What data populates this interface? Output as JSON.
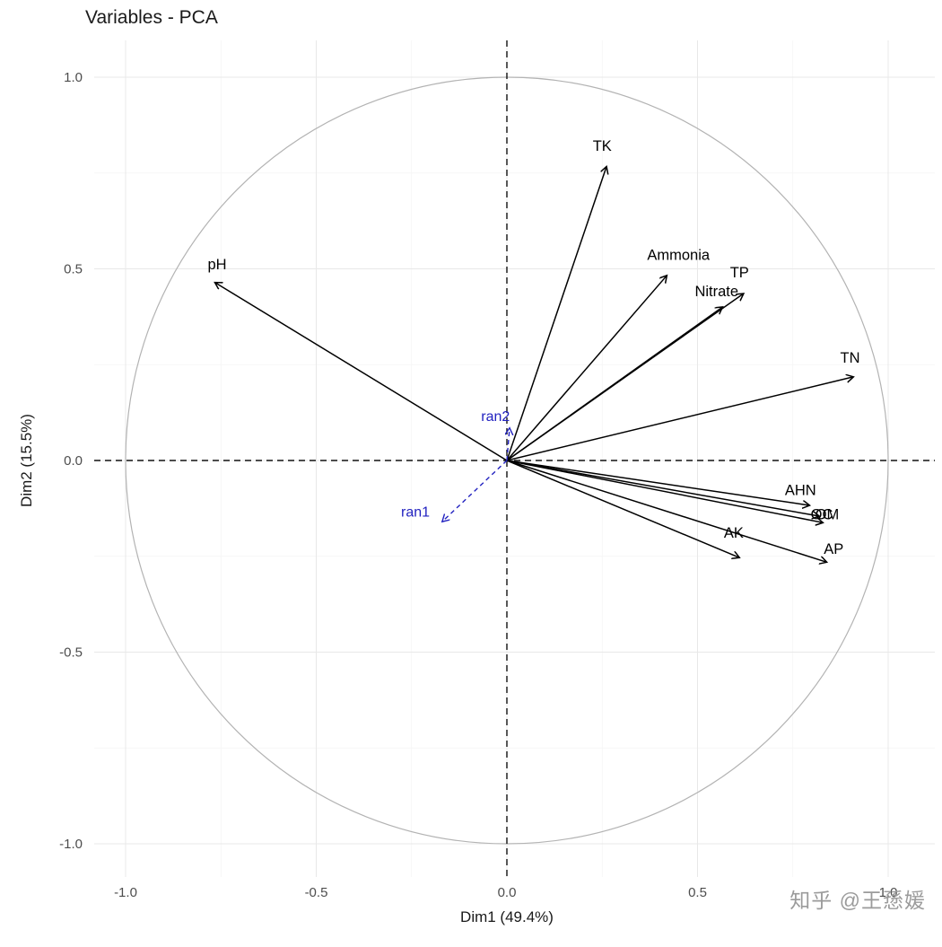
{
  "title": "Variables - PCA",
  "watermark": {
    "text": "知乎 @王愻媛",
    "color": "#9b9b9b"
  },
  "chart_data": {
    "type": "scatter",
    "subtype": "pca-variables-correlation-circle",
    "title": "Variables - PCA",
    "xlabel": "Dim1 (49.4%)",
    "ylabel": "Dim2 (15.5%)",
    "xlim": [
      -1.09,
      1.12
    ],
    "ylim": [
      -1.09,
      1.1
    ],
    "x_ticks": [
      -1.0,
      -0.5,
      0.0,
      0.5,
      1.0
    ],
    "y_ticks": [
      -1.0,
      -0.5,
      0.0,
      0.5,
      1.0
    ],
    "minor_ticks": [
      -0.75,
      -0.25,
      0.25,
      0.75
    ],
    "grid": true,
    "circle_radius": 1.0,
    "zero_lines_dashed": true,
    "colors": {
      "active": "#000000",
      "supplementary": "#2222c0",
      "circle": "#b3b3b3",
      "grid_major": "#e8e8e8",
      "grid_minor": "#f4f4f4",
      "axis_text": "#4d4d4d",
      "zero_line": "#111111"
    },
    "variables": [
      {
        "name": "pH",
        "group": "active",
        "x": -0.765,
        "y": 0.464,
        "label_x": -0.76,
        "label_y": 0.51
      },
      {
        "name": "TK",
        "group": "active",
        "x": 0.261,
        "y": 0.766,
        "label_x": 0.25,
        "label_y": 0.82
      },
      {
        "name": "Ammonia",
        "group": "active",
        "x": 0.419,
        "y": 0.482,
        "label_x": 0.45,
        "label_y": 0.535
      },
      {
        "name": "TP",
        "group": "active",
        "x": 0.62,
        "y": 0.435,
        "label_x": 0.61,
        "label_y": 0.49
      },
      {
        "name": "Nitrate",
        "group": "active",
        "x": 0.565,
        "y": 0.4,
        "label_x": 0.55,
        "label_y": 0.44
      },
      {
        "name": "TN",
        "group": "active",
        "x": 0.908,
        "y": 0.218,
        "label_x": 0.9,
        "label_y": 0.267
      },
      {
        "name": "AHN",
        "group": "active",
        "x": 0.793,
        "y": -0.117,
        "label_x": 0.77,
        "label_y": -0.078
      },
      {
        "name": "OC",
        "group": "active",
        "x": 0.818,
        "y": -0.145,
        "label_x": 0.826,
        "label_y": -0.142
      },
      {
        "name": "OM",
        "group": "active",
        "x": 0.828,
        "y": -0.162,
        "label_x": 0.84,
        "label_y": -0.142
      },
      {
        "name": "AP",
        "group": "active",
        "x": 0.838,
        "y": -0.265,
        "label_x": 0.857,
        "label_y": -0.232
      },
      {
        "name": "AK",
        "group": "active",
        "x": 0.609,
        "y": -0.253,
        "label_x": 0.595,
        "label_y": -0.19
      },
      {
        "name": "ran2",
        "group": "supplementary",
        "x": 0.007,
        "y": 0.084,
        "label_x": -0.03,
        "label_y": 0.115
      },
      {
        "name": "ran1",
        "group": "supplementary",
        "x": -0.169,
        "y": -0.159,
        "label_x": -0.24,
        "label_y": -0.135
      }
    ]
  }
}
